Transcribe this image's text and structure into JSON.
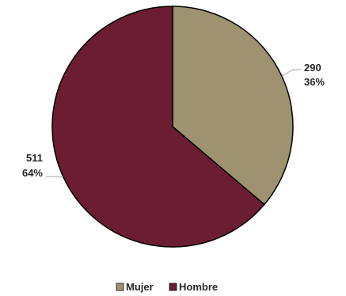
{
  "chart_data": {
    "type": "pie",
    "categories": [
      "Mujer",
      "Hombre"
    ],
    "values": [
      290,
      511
    ],
    "percent_labels": [
      "36%",
      "64%"
    ],
    "colors": [
      "#9e9270",
      "#6b1d31"
    ],
    "legend_position": "bottom",
    "start_angle": "12 o'clock",
    "direction": "clockwise"
  }
}
